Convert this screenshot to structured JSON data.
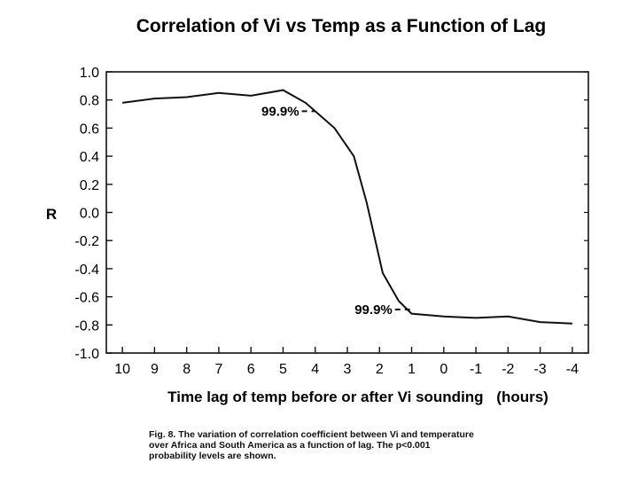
{
  "chart_data": {
    "type": "line",
    "title": "Correlation of Vi vs Temp as a Function of Lag",
    "xlabel": "Time lag of temp before or after Vi sounding",
    "xlabel_units": "(hours)",
    "ylabel": "R",
    "x": [
      10,
      9,
      8,
      7,
      6,
      5,
      4,
      3,
      2,
      1,
      0,
      -1,
      -2,
      -3,
      -4
    ],
    "x_tick_labels": [
      "10",
      "9",
      "8",
      "7",
      "6",
      "5",
      "4",
      "3",
      "2",
      "1",
      "0",
      "-1",
      "-2",
      "-3",
      "-4"
    ],
    "y_tick_labels": [
      "1.0",
      "0.8",
      "0.6",
      "0.4",
      "0.2",
      "0.0",
      "-0.2",
      "-0.4",
      "-0.6",
      "-0.8",
      "-1.0"
    ],
    "y_ticks": [
      1.0,
      0.8,
      0.6,
      0.4,
      0.2,
      0.0,
      -0.2,
      -0.4,
      -0.6,
      -0.8,
      -1.0
    ],
    "xlim": [
      10.5,
      -4.5
    ],
    "ylim": [
      -1.0,
      1.0
    ],
    "series": [
      {
        "name": "R",
        "x": [
          10,
          9,
          8,
          7,
          6,
          5,
          4.3,
          3.4,
          2.8,
          2.4,
          1.9,
          1.4,
          1,
          0,
          -1,
          -2,
          -3,
          -4
        ],
        "values": [
          0.78,
          0.81,
          0.82,
          0.85,
          0.83,
          0.87,
          0.78,
          0.6,
          0.4,
          0.07,
          -0.43,
          -0.63,
          -0.72,
          -0.74,
          -0.75,
          -0.74,
          -0.78,
          -0.79
        ]
      }
    ],
    "annotations": [
      {
        "text": "99.9%",
        "x": 4.5,
        "y": 0.72,
        "line_to_x": 4.0
      },
      {
        "text": "99.9%",
        "x": 1.6,
        "y": -0.69,
        "line_to_x": 1.05
      }
    ],
    "grid": false
  },
  "caption": {
    "line1": "Fig. 8.  The variation of correlation coefficient between Vi and temperature",
    "line2": "over Africa and South America as a function of lag.   The p<0.001",
    "line3": "probability levels are shown."
  }
}
